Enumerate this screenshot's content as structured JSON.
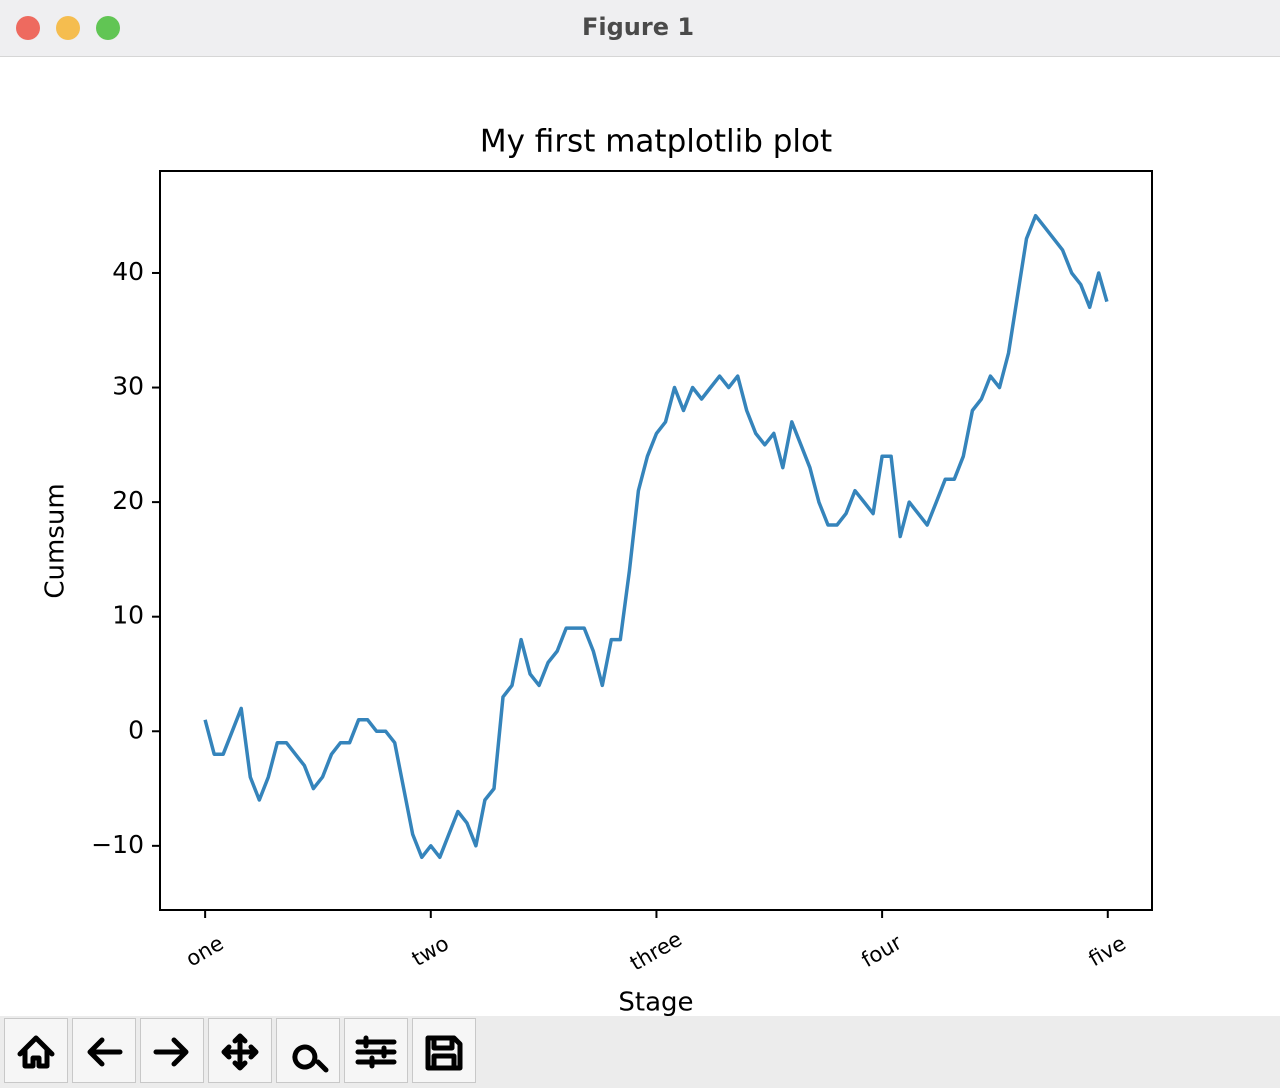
{
  "window_title": "Figure 1",
  "chart_data": {
    "type": "line",
    "title": "My first matplotlib plot",
    "x_label": "Stage",
    "y_label": "Cumsum",
    "x": [
      0,
      10,
      20,
      30,
      40,
      50,
      60,
      70,
      80,
      90,
      100,
      110,
      120,
      130,
      140,
      150,
      160,
      170,
      180,
      190,
      200,
      210,
      220,
      230,
      240,
      250,
      260,
      270,
      280,
      290,
      300,
      310,
      320,
      330,
      340,
      350,
      360,
      370,
      380,
      390,
      400,
      410,
      420,
      430,
      440,
      450,
      460,
      470,
      480,
      490,
      500,
      510,
      520,
      530,
      540,
      550,
      560,
      570,
      580,
      590,
      600,
      610,
      620,
      630,
      640,
      650,
      660,
      670,
      680,
      690,
      700,
      710,
      720,
      730,
      740,
      750,
      760,
      770,
      780,
      790,
      800,
      810,
      820,
      830,
      840,
      850,
      860,
      870,
      880,
      890,
      900,
      910,
      920,
      930,
      940,
      950,
      960,
      970,
      980,
      990,
      999
    ],
    "values": [
      1,
      -2,
      -2,
      0,
      2,
      -4,
      -6,
      -4,
      -1,
      -1,
      -2,
      -3,
      -5,
      -4,
      -2,
      -1,
      -1,
      1,
      1,
      0,
      0,
      -1,
      -5,
      -9,
      -11,
      -10,
      -11,
      -9,
      -7,
      -8,
      -10,
      -6,
      -5,
      3,
      4,
      8,
      5,
      4,
      6,
      7,
      9,
      9,
      9,
      7,
      4,
      8,
      8,
      14,
      21,
      24,
      26,
      27,
      30,
      28,
      30,
      29,
      30,
      31,
      30,
      31,
      28,
      26,
      25,
      26,
      23,
      27,
      25,
      23,
      20,
      18,
      18,
      19,
      21,
      20,
      19,
      24,
      24,
      17,
      20,
      19,
      18,
      20,
      22,
      22,
      24,
      28,
      29,
      31,
      30,
      33,
      38,
      43,
      45,
      44,
      43,
      42,
      40,
      39,
      37,
      40,
      37.5
    ],
    "color": "#1f77b4",
    "xlim": [
      -50,
      1049
    ],
    "ylim": [
      -15.6,
      48.9
    ],
    "xticks": [
      {
        "value": 0,
        "label": "one"
      },
      {
        "value": 250,
        "label": "two"
      },
      {
        "value": 500,
        "label": "three"
      },
      {
        "value": 750,
        "label": "four"
      },
      {
        "value": 1000,
        "label": "five"
      }
    ],
    "yticks": [
      {
        "value": -10,
        "label": "−10"
      },
      0,
      10,
      20,
      30,
      40
    ],
    "grid": false
  }
}
